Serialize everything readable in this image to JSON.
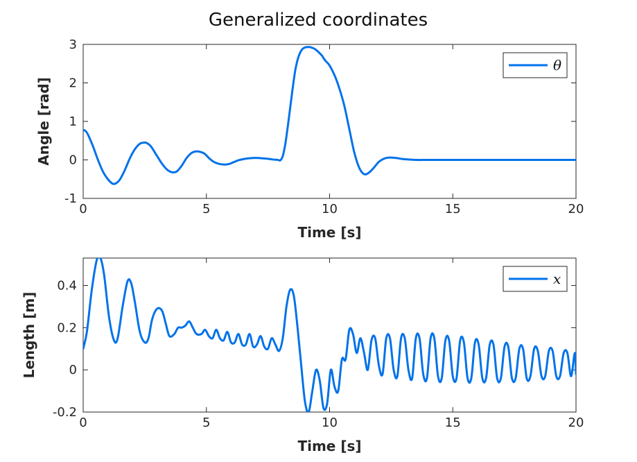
{
  "figure": {
    "title": "Generalized coordinates"
  },
  "chart_data": [
    {
      "type": "line",
      "xlabel": "Time [s]",
      "ylabel": "Angle [rad]",
      "xlim": [
        0,
        20
      ],
      "ylim": [
        -1,
        3
      ],
      "xticks": [
        0,
        5,
        10,
        15,
        20
      ],
      "yticks": [
        -1,
        0,
        1,
        2,
        3
      ],
      "xtick_labels": [
        "0",
        "5",
        "10",
        "15",
        "20"
      ],
      "ytick_labels": [
        "-1",
        "0",
        "1",
        "2",
        "3"
      ],
      "legend": {
        "position": "top-right"
      },
      "series": [
        {
          "name": "θ",
          "color": "#0072ea",
          "x": [
            0,
            0.1,
            0.2,
            0.4,
            0.6,
            0.8,
            1.0,
            1.2,
            1.35,
            1.5,
            1.7,
            1.9,
            2.1,
            2.3,
            2.5,
            2.6,
            2.75,
            3.0,
            3.2,
            3.4,
            3.6,
            3.8,
            4.0,
            4.2,
            4.4,
            4.6,
            4.8,
            4.95,
            5.1,
            5.3,
            5.5,
            5.7,
            5.9,
            6.1,
            6.3,
            6.5,
            6.7,
            6.9,
            7.1,
            7.3,
            7.5,
            7.7,
            7.9,
            8.0,
            8.1,
            8.2,
            8.3,
            8.4,
            8.5,
            8.6,
            8.7,
            8.8,
            8.9,
            9.0,
            9.1,
            9.2,
            9.3,
            9.4,
            9.5,
            9.6,
            9.7,
            9.8,
            9.9,
            10.0,
            10.2,
            10.4,
            10.6,
            10.8,
            11.0,
            11.2,
            11.4,
            11.6,
            11.8,
            12.0,
            12.2,
            12.4,
            12.7,
            13.0,
            13.5,
            14.0,
            15.0,
            16.0,
            17.0,
            18.0,
            19.0,
            20.0
          ],
          "y": [
            0.78,
            0.75,
            0.65,
            0.35,
            0.0,
            -0.3,
            -0.5,
            -0.62,
            -0.6,
            -0.5,
            -0.25,
            0.05,
            0.28,
            0.42,
            0.45,
            0.43,
            0.35,
            0.1,
            -0.1,
            -0.25,
            -0.32,
            -0.3,
            -0.15,
            0.05,
            0.18,
            0.22,
            0.2,
            0.15,
            0.05,
            -0.05,
            -0.1,
            -0.12,
            -0.11,
            -0.06,
            -0.01,
            0.02,
            0.04,
            0.05,
            0.05,
            0.04,
            0.03,
            0.01,
            0.0,
            -0.01,
            0.1,
            0.4,
            0.85,
            1.35,
            1.85,
            2.3,
            2.6,
            2.78,
            2.88,
            2.92,
            2.93,
            2.93,
            2.91,
            2.88,
            2.83,
            2.77,
            2.7,
            2.6,
            2.53,
            2.45,
            2.2,
            1.85,
            1.4,
            0.8,
            0.2,
            -0.2,
            -0.37,
            -0.33,
            -0.2,
            -0.05,
            0.03,
            0.06,
            0.05,
            0.02,
            0.0,
            0.0,
            0.0,
            0.0,
            0.0,
            0.0,
            0.0,
            0.0
          ]
        }
      ]
    },
    {
      "type": "line",
      "xlabel": "Time [s]",
      "ylabel": "Length [m]",
      "xlim": [
        0,
        20
      ],
      "ylim": [
        -0.2,
        0.53
      ],
      "xticks": [
        0,
        5,
        10,
        15,
        20
      ],
      "yticks": [
        -0.2,
        0,
        0.2,
        0.4
      ],
      "xtick_labels": [
        "0",
        "5",
        "10",
        "15",
        "20"
      ],
      "ytick_labels": [
        "-0.2",
        "0",
        "0.2",
        "0.4"
      ],
      "legend": {
        "position": "top-right"
      },
      "series": [
        {
          "name": "x",
          "color": "#0072ea",
          "x": [
            0,
            0.15,
            0.35,
            0.55,
            0.7,
            0.85,
            1.05,
            1.25,
            1.4,
            1.6,
            1.8,
            1.95,
            2.1,
            2.3,
            2.5,
            2.65,
            2.8,
            3.0,
            3.2,
            3.35,
            3.5,
            3.7,
            3.85,
            4.0,
            4.15,
            4.3,
            4.45,
            4.6,
            4.8,
            4.95,
            5.1,
            5.25,
            5.4,
            5.55,
            5.7,
            5.85,
            6.0,
            6.15,
            6.3,
            6.45,
            6.6,
            6.75,
            6.9,
            7.05,
            7.2,
            7.35,
            7.5,
            7.65,
            7.8,
            7.95,
            8.1,
            8.25,
            8.4,
            8.55,
            8.7,
            8.85,
            9.0,
            9.15,
            9.3,
            9.45,
            9.6,
            9.75,
            9.9,
            10.05,
            10.2,
            10.35,
            10.5,
            10.65,
            10.8,
            10.95,
            11.1,
            11.25,
            11.4,
            11.55,
            11.7,
            11.85,
            12.0,
            12.15,
            12.3,
            12.45,
            12.6,
            12.75,
            12.9,
            13.05,
            13.2,
            13.35,
            13.5,
            13.65,
            13.8,
            13.95,
            14.1,
            14.25,
            14.4,
            14.55,
            14.7,
            14.85,
            15.0,
            15.15,
            15.3,
            15.45,
            15.6,
            15.75,
            15.9,
            16.05,
            16.2,
            16.35,
            16.5,
            16.65,
            16.8,
            16.95,
            17.1,
            17.25,
            17.4,
            17.55,
            17.7,
            17.85,
            18.0,
            18.15,
            18.3,
            18.45,
            18.6,
            18.75,
            18.9,
            19.05,
            19.2,
            19.35,
            19.5,
            19.65,
            19.8,
            19.95,
            20.0
          ],
          "y": [
            0.1,
            0.18,
            0.38,
            0.52,
            0.53,
            0.45,
            0.25,
            0.14,
            0.15,
            0.3,
            0.42,
            0.41,
            0.32,
            0.18,
            0.13,
            0.15,
            0.24,
            0.29,
            0.28,
            0.22,
            0.16,
            0.17,
            0.2,
            0.2,
            0.21,
            0.23,
            0.2,
            0.17,
            0.17,
            0.19,
            0.16,
            0.15,
            0.19,
            0.15,
            0.14,
            0.18,
            0.13,
            0.13,
            0.17,
            0.12,
            0.12,
            0.17,
            0.11,
            0.12,
            0.16,
            0.11,
            0.1,
            0.15,
            0.12,
            0.09,
            0.15,
            0.3,
            0.38,
            0.35,
            0.2,
            0.02,
            -0.15,
            -0.2,
            -0.1,
            0.0,
            -0.05,
            -0.18,
            -0.16,
            0.0,
            -0.08,
            -0.1,
            0.05,
            0.05,
            0.19,
            0.17,
            0.08,
            0.15,
            0.08,
            0.0,
            0.14,
            0.15,
            0.02,
            -0.02,
            0.15,
            0.15,
            0.0,
            -0.03,
            0.15,
            0.15,
            0.0,
            -0.04,
            0.15,
            0.15,
            -0.02,
            -0.04,
            0.15,
            0.15,
            -0.03,
            -0.04,
            0.14,
            0.14,
            -0.03,
            -0.04,
            0.14,
            0.13,
            -0.04,
            -0.04,
            0.13,
            0.12,
            -0.04,
            -0.04,
            0.12,
            0.12,
            -0.04,
            -0.04,
            0.11,
            0.11,
            -0.04,
            -0.04,
            0.1,
            0.1,
            -0.04,
            -0.03,
            0.1,
            0.09,
            -0.03,
            -0.03,
            0.09,
            0.09,
            -0.03,
            -0.03,
            0.08,
            0.08,
            -0.03,
            0.08,
            -0.02
          ]
        }
      ]
    }
  ]
}
